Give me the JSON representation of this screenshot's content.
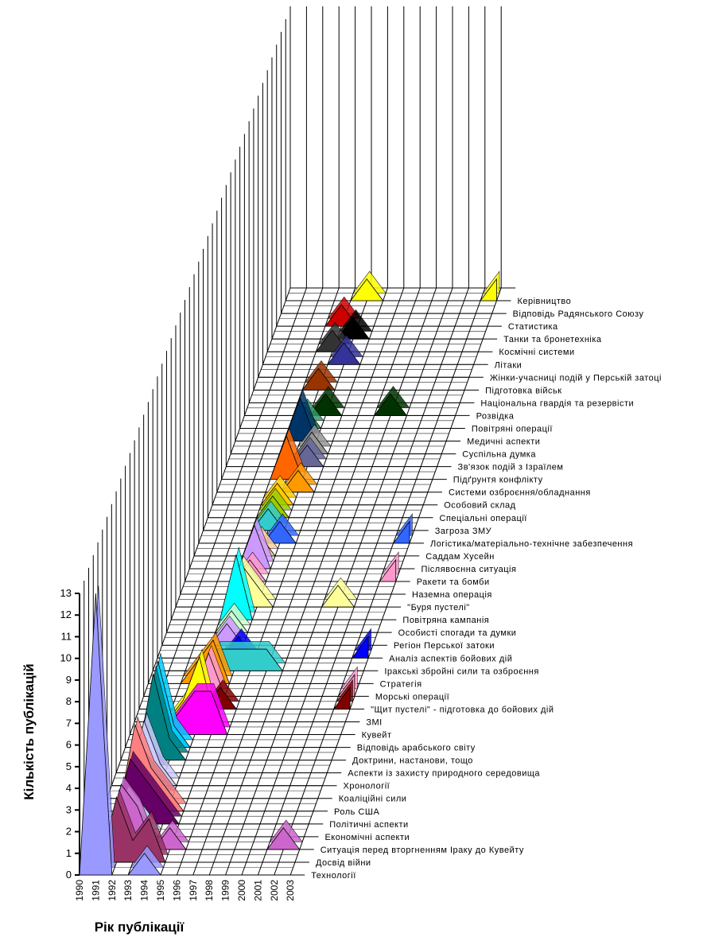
{
  "chart_data": {
    "type": "area3d",
    "xlabel": "Рік публікації",
    "ylabel": "Кількість публікацій",
    "categories": [
      "1990",
      "1991",
      "1992",
      "1993",
      "1994",
      "1995",
      "1996",
      "1997",
      "1998",
      "1999",
      "2000",
      "2001",
      "2002",
      "2003"
    ],
    "ylim": [
      0,
      13
    ],
    "yticks": [
      0,
      1,
      2,
      3,
      4,
      5,
      6,
      7,
      8,
      9,
      10,
      11,
      12,
      13
    ],
    "grid": true,
    "series": [
      {
        "name": "Технології",
        "color": "#9999FF",
        "values": [
          0,
          13,
          0,
          0,
          1,
          0,
          0,
          0,
          0,
          0,
          0,
          0,
          0,
          0
        ]
      },
      {
        "name": "Досвід війни",
        "color": "#993366",
        "values": [
          0,
          0,
          3,
          1,
          2,
          0,
          0,
          0,
          0,
          0,
          0,
          0,
          0,
          0
        ]
      },
      {
        "name": "Ситуація перед вторгненням Іраку до Кувейту",
        "color": "#CC66CC",
        "values": [
          0,
          0,
          3,
          2,
          0,
          1,
          0,
          0,
          0,
          0,
          0,
          0,
          1,
          0
        ]
      },
      {
        "name": "Економічні аспекти",
        "color": "#CCFFFF",
        "values": [
          0,
          0,
          2,
          1,
          0,
          0,
          0,
          0,
          0,
          0,
          0,
          0,
          0,
          0
        ]
      },
      {
        "name": "Політичні аспекти",
        "color": "#660066",
        "values": [
          0,
          0,
          3,
          2,
          1,
          0,
          0,
          0,
          0,
          0,
          0,
          0,
          0,
          0
        ]
      },
      {
        "name": "Роль США",
        "color": "#FF8080",
        "values": [
          0,
          0,
          4,
          2,
          1,
          0,
          0,
          0,
          0,
          0,
          0,
          0,
          0,
          0
        ]
      },
      {
        "name": "Коаліційні сили",
        "color": "#0066CC",
        "values": [
          0,
          0,
          2,
          1,
          0,
          0,
          0,
          0,
          0,
          0,
          0,
          0,
          0,
          0
        ]
      },
      {
        "name": "Хронології",
        "color": "#CCCCFF",
        "values": [
          0,
          0,
          3,
          1,
          0,
          0,
          0,
          0,
          0,
          0,
          0,
          0,
          0,
          0
        ]
      },
      {
        "name": "Аспекти із захисту природного середовища",
        "color": "#000080",
        "values": [
          0,
          0,
          1,
          0,
          0,
          0,
          0,
          0,
          0,
          0,
          0,
          0,
          0,
          0
        ]
      },
      {
        "name": "Доктрини, настанови, тощо",
        "color": "#008080",
        "values": [
          0,
          0,
          4,
          1,
          0,
          0,
          0,
          0,
          0,
          0,
          0,
          0,
          0,
          0
        ]
      },
      {
        "name": "Відповідь арабського світу",
        "color": "#00CCFF",
        "values": [
          0,
          0,
          4,
          1,
          0,
          0,
          0,
          0,
          0,
          0,
          0,
          0,
          0,
          0
        ]
      },
      {
        "name": "Кувейт",
        "color": "#FF00FF",
        "values": [
          0,
          0,
          0,
          1,
          2,
          2,
          0,
          0,
          0,
          0,
          0,
          0,
          0,
          0
        ]
      },
      {
        "name": "ЗМІ",
        "color": "#FFFF00",
        "values": [
          0,
          0,
          0,
          1,
          3,
          0,
          0,
          0,
          0,
          0,
          0,
          0,
          0,
          0
        ]
      },
      {
        "name": "\"Щит пустелі\" - підготовка до бойових дій",
        "color": "#800000",
        "values": [
          0,
          0,
          0,
          0,
          0,
          1,
          0,
          0,
          0,
          0,
          0,
          0,
          0,
          1
        ]
      },
      {
        "name": "Морські операції",
        "color": "#FF99CC",
        "values": [
          0,
          0,
          0,
          0,
          2,
          0,
          0,
          0,
          0,
          0,
          0,
          0,
          0,
          1
        ]
      },
      {
        "name": "Стратегія",
        "color": "#FF9900",
        "values": [
          0,
          0,
          0,
          1,
          2,
          0,
          0,
          0,
          0,
          0,
          0,
          0,
          0,
          0
        ]
      },
      {
        "name": "Іракські збройні сили та озброєння",
        "color": "#33CCCC",
        "values": [
          0,
          0,
          0,
          0,
          1,
          1,
          1,
          1,
          0,
          0,
          0,
          0,
          0,
          0
        ]
      },
      {
        "name": "Аналіз аспектів бойових дій",
        "color": "#0000FF",
        "values": [
          0,
          0,
          0,
          0,
          0,
          1,
          0,
          0,
          0,
          0,
          0,
          0,
          0,
          1
        ]
      },
      {
        "name": "Регіон Перської затоки",
        "color": "#CC99FF",
        "values": [
          0,
          0,
          0,
          0,
          1,
          0,
          0,
          0,
          0,
          0,
          0,
          0,
          0,
          0
        ]
      },
      {
        "name": "Особисті спогади та думки",
        "color": "#CCFFCC",
        "values": [
          0,
          0,
          0,
          0,
          1,
          0,
          0,
          0,
          0,
          0,
          0,
          0,
          0,
          0
        ]
      },
      {
        "name": "Повітряна кампанія",
        "color": "#00FFFF",
        "values": [
          0,
          0,
          0,
          0,
          3,
          0,
          0,
          0,
          0,
          0,
          0,
          0,
          0,
          0
        ]
      },
      {
        "name": "\"Буря пустелі\"",
        "color": "#FFFF99",
        "values": [
          0,
          0,
          0,
          0,
          2,
          1,
          0,
          0,
          0,
          0,
          1,
          0,
          0,
          0
        ]
      },
      {
        "name": "Наземна операція",
        "color": "#99CCFF",
        "values": [
          0,
          0,
          0,
          0,
          1,
          0,
          0,
          0,
          0,
          0,
          0,
          0,
          0,
          0
        ]
      },
      {
        "name": "Ракети та бомби",
        "color": "#FF99CC",
        "values": [
          0,
          0,
          0,
          0,
          1,
          0,
          0,
          0,
          0,
          0,
          0,
          0,
          0,
          1
        ]
      },
      {
        "name": "Післявоєнна ситуація",
        "color": "#CC99FF",
        "values": [
          0,
          0,
          0,
          0,
          2,
          0,
          0,
          0,
          0,
          0,
          0,
          0,
          0,
          0
        ]
      },
      {
        "name": "Саддам Хусейн",
        "color": "#FFCC99",
        "values": [
          0,
          0,
          0,
          0,
          1,
          0,
          0,
          0,
          0,
          0,
          0,
          0,
          0,
          0
        ]
      },
      {
        "name": "Логістика/матеріально-технічне забезпечення",
        "color": "#3366FF",
        "values": [
          0,
          0,
          0,
          0,
          0,
          1,
          0,
          0,
          0,
          0,
          0,
          0,
          0,
          1
        ]
      },
      {
        "name": "Загроза ЗМУ",
        "color": "#33CCCC",
        "values": [
          0,
          0,
          0,
          0,
          1,
          0,
          0,
          0,
          0,
          0,
          0,
          0,
          0,
          0
        ]
      },
      {
        "name": "Спеціальні операції",
        "color": "#99CC00",
        "values": [
          0,
          0,
          0,
          0,
          1,
          0,
          0,
          0,
          0,
          0,
          0,
          0,
          0,
          0
        ]
      },
      {
        "name": "Особовий склад",
        "color": "#FFCC00",
        "values": [
          0,
          0,
          0,
          0,
          1,
          0,
          0,
          0,
          0,
          0,
          0,
          0,
          0,
          0
        ]
      },
      {
        "name": "Системи озброєння/обладнання",
        "color": "#FF9900",
        "values": [
          0,
          0,
          0,
          0,
          0,
          1,
          0,
          0,
          0,
          0,
          0,
          0,
          0,
          0
        ]
      },
      {
        "name": "Підґрунтя конфлікту",
        "color": "#FF6600",
        "values": [
          0,
          0,
          0,
          0,
          2,
          0,
          0,
          0,
          0,
          0,
          0,
          0,
          0,
          0
        ]
      },
      {
        "name": "Зв'язок подій з Ізраїлем",
        "color": "#666699",
        "values": [
          0,
          0,
          0,
          0,
          0,
          1,
          0,
          0,
          0,
          0,
          0,
          0,
          0,
          0
        ]
      },
      {
        "name": "Суспільна думка",
        "color": "#969696",
        "values": [
          0,
          0,
          0,
          0,
          0,
          1,
          0,
          0,
          0,
          0,
          0,
          0,
          0,
          0
        ]
      },
      {
        "name": "Медичні аспекти",
        "color": "#003366",
        "values": [
          0,
          0,
          0,
          0,
          2,
          0,
          0,
          0,
          0,
          0,
          0,
          0,
          0,
          0
        ]
      },
      {
        "name": "Повітряні операції",
        "color": "#339966",
        "values": [
          0,
          0,
          0,
          0,
          1,
          0,
          0,
          0,
          0,
          0,
          0,
          0,
          0,
          0
        ]
      },
      {
        "name": "Розвідка",
        "color": "#003300",
        "values": [
          0,
          0,
          0,
          0,
          0,
          1,
          0,
          0,
          0,
          1,
          0,
          0,
          0,
          0
        ]
      },
      {
        "name": "Національна гвардія та резервісти",
        "color": "#333300",
        "values": [
          0,
          0,
          0,
          0,
          0,
          0,
          0,
          0,
          0,
          0,
          0,
          0,
          0,
          0
        ]
      },
      {
        "name": "Підготовка військ",
        "color": "#993300",
        "values": [
          0,
          0,
          0,
          0,
          1,
          0,
          0,
          0,
          0,
          0,
          0,
          0,
          0,
          0
        ]
      },
      {
        "name": "Жінки-учасниці подій у Перській затоці",
        "color": "#993366",
        "values": [
          0,
          0,
          0,
          0,
          0,
          0,
          0,
          0,
          0,
          0,
          0,
          0,
          0,
          0
        ]
      },
      {
        "name": "Літаки",
        "color": "#333399",
        "values": [
          0,
          0,
          0,
          0,
          0,
          1,
          0,
          0,
          0,
          0,
          0,
          0,
          0,
          0
        ]
      },
      {
        "name": "Космічні системи",
        "color": "#333333",
        "values": [
          0,
          0,
          0,
          0,
          1,
          0,
          0,
          0,
          0,
          0,
          0,
          0,
          0,
          0
        ]
      },
      {
        "name": "Танки та бронетехніка",
        "color": "#000000",
        "values": [
          0,
          0,
          0,
          0,
          0,
          1,
          0,
          0,
          0,
          0,
          0,
          0,
          0,
          0
        ]
      },
      {
        "name": "Статистика",
        "color": "#CC0000",
        "values": [
          0,
          0,
          0,
          0,
          1,
          0,
          0,
          0,
          0,
          0,
          0,
          0,
          0,
          0
        ]
      },
      {
        "name": "Відповідь Радянського Союзу",
        "color": "#00CC33",
        "values": [
          0,
          0,
          0,
          0,
          0,
          0,
          0,
          0,
          0,
          0,
          0,
          0,
          0,
          0
        ]
      },
      {
        "name": "Керівництво",
        "color": "#FFFF00",
        "values": [
          0,
          0,
          0,
          0,
          0,
          1,
          0,
          0,
          0,
          0,
          0,
          0,
          0,
          1
        ]
      }
    ]
  }
}
